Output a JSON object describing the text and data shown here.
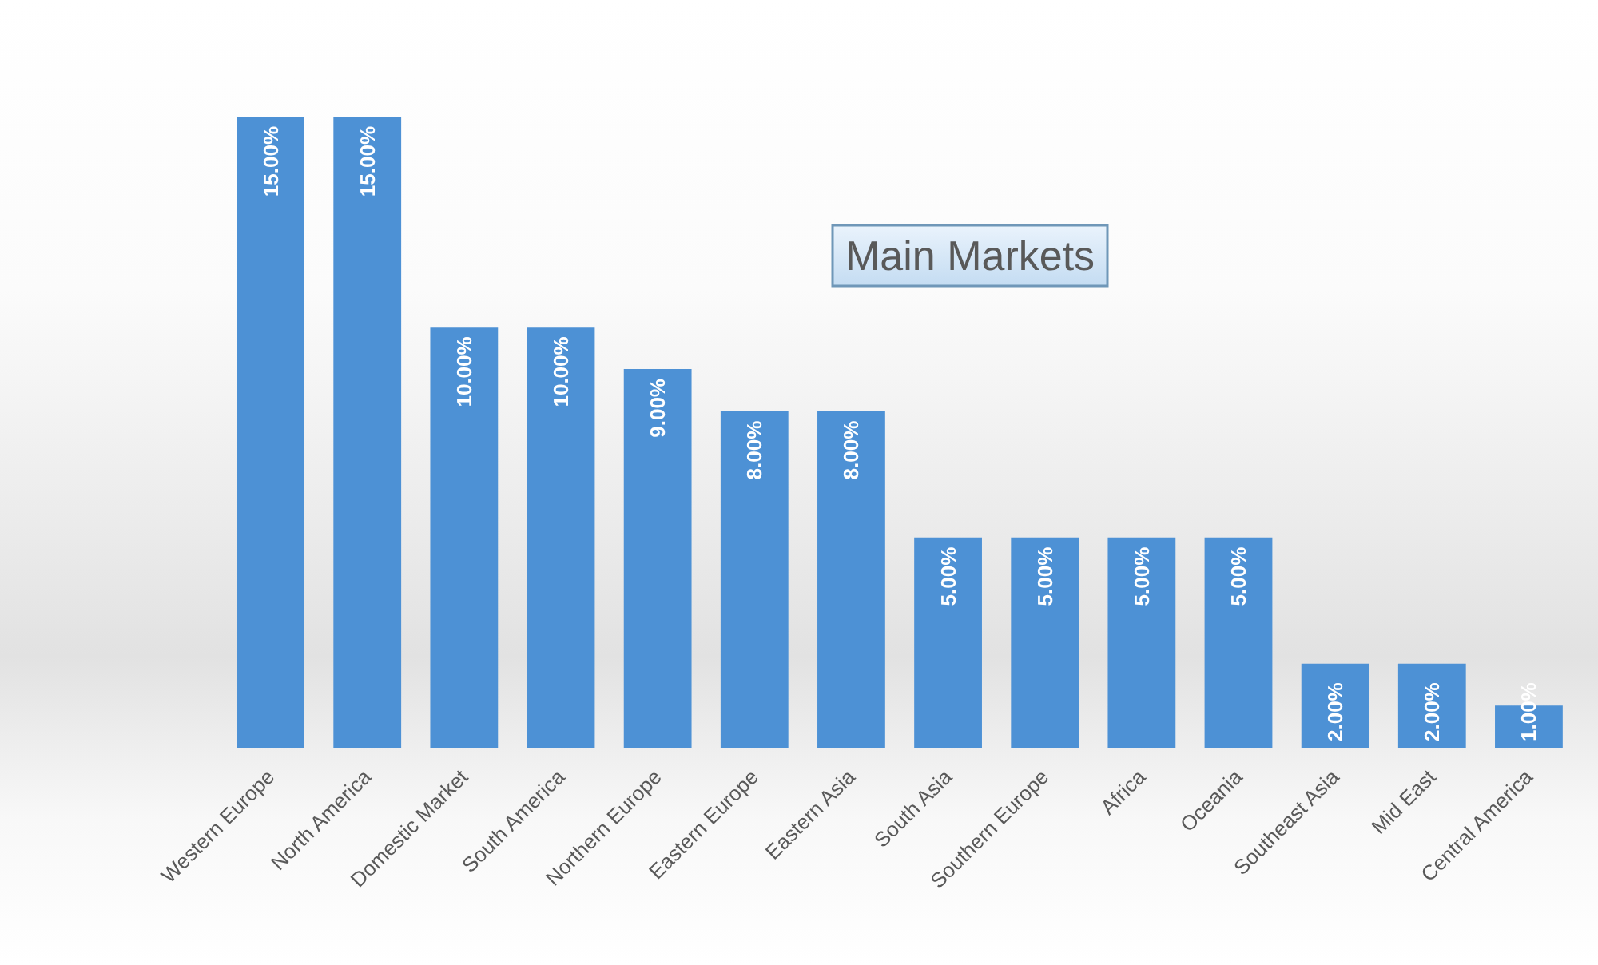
{
  "chart_data": {
    "type": "bar",
    "title": "Main Markets",
    "categories": [
      "Western Europe",
      "North America",
      "Domestic Market",
      "South America",
      "Northern Europe",
      "Eastern Europe",
      "Eastern Asia",
      "South Asia",
      "Southern Europe",
      "Africa",
      "Oceania",
      "Southeast Asia",
      "Mid East",
      "Central America"
    ],
    "values": [
      15,
      15,
      10,
      10,
      9,
      8,
      8,
      5,
      5,
      5,
      5,
      2,
      2,
      1
    ],
    "value_labels": [
      "15.00%",
      "15.00%",
      "10.00%",
      "10.00%",
      "9.00%",
      "8.00%",
      "8.00%",
      "5.00%",
      "5.00%",
      "5.00%",
      "5.00%",
      "2.00%",
      "2.00%",
      "1.00%"
    ],
    "color": "#4d91d5",
    "grid": false
  }
}
